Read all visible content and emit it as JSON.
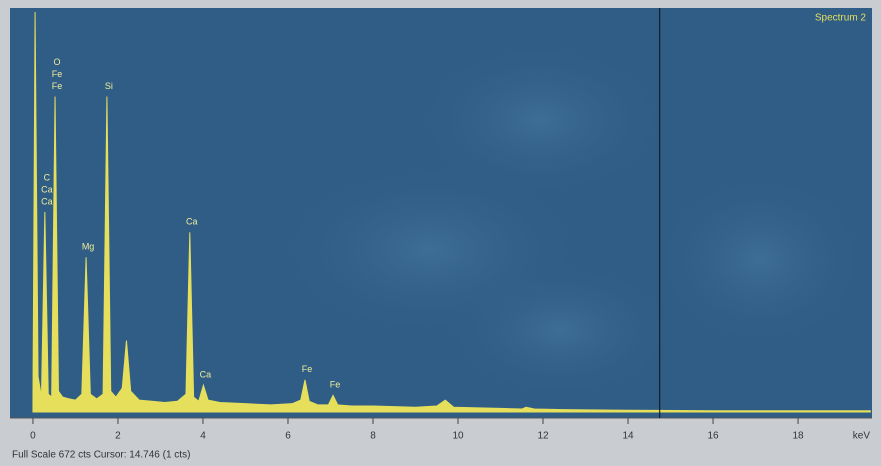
{
  "chart_data": {
    "type": "area",
    "title": "Spectrum 2",
    "x_label": "keV",
    "status": "Full Scale 672 cts Cursor: 14.746 (1 cts)",
    "cursor": 14.746,
    "color": "#e6df5c",
    "xlim": [
      -0.54,
      19.74
    ],
    "xticks": [
      0,
      2,
      4,
      6,
      8,
      10,
      12,
      14,
      16,
      18
    ],
    "ylim": [
      0,
      672
    ],
    "x": [
      0,
      0.05,
      0.12,
      0.2,
      0.28,
      0.36,
      0.44,
      0.52,
      0.6,
      0.7,
      0.85,
      1.0,
      1.15,
      1.25,
      1.35,
      1.5,
      1.65,
      1.74,
      1.83,
      1.95,
      2.1,
      2.2,
      2.3,
      2.5,
      2.8,
      3.1,
      3.4,
      3.6,
      3.69,
      3.78,
      3.9,
      4.01,
      4.12,
      4.4,
      5.0,
      5.6,
      6.1,
      6.3,
      6.4,
      6.5,
      6.7,
      6.95,
      7.06,
      7.17,
      7.5,
      8.0,
      8.5,
      9.0,
      9.5,
      9.7,
      9.9,
      10.5,
      11.0,
      11.5,
      11.6,
      11.8,
      12.5,
      14,
      16,
      18,
      19.7
    ],
    "values": [
      20,
      672,
      60,
      25,
      336,
      30,
      25,
      530,
      35,
      25,
      22,
      20,
      30,
      260,
      30,
      22,
      30,
      530,
      35,
      25,
      40,
      120,
      35,
      20,
      18,
      16,
      18,
      30,
      302,
      25,
      18,
      45,
      20,
      16,
      14,
      12,
      14,
      20,
      54,
      18,
      12,
      12,
      28,
      12,
      10,
      10,
      9,
      8,
      10,
      20,
      8,
      7,
      6,
      5,
      8,
      5,
      4,
      3,
      2,
      2,
      2
    ],
    "annotations": [
      {
        "text": "C",
        "x": 0.28
      },
      {
        "text": "Ca",
        "x": 0.28
      },
      {
        "text": "Ca",
        "x": 0.28
      },
      {
        "text": "O",
        "x": 0.52
      },
      {
        "text": "Fe",
        "x": 0.52
      },
      {
        "text": "Fe",
        "x": 0.52
      },
      {
        "text": "Mg",
        "x": 1.25
      },
      {
        "text": "Si",
        "x": 1.74
      },
      {
        "text": "Ca",
        "x": 3.69
      },
      {
        "text": "Ca",
        "x": 4.01
      },
      {
        "text": "Fe",
        "x": 6.4
      },
      {
        "text": "Fe",
        "x": 7.06
      }
    ]
  }
}
